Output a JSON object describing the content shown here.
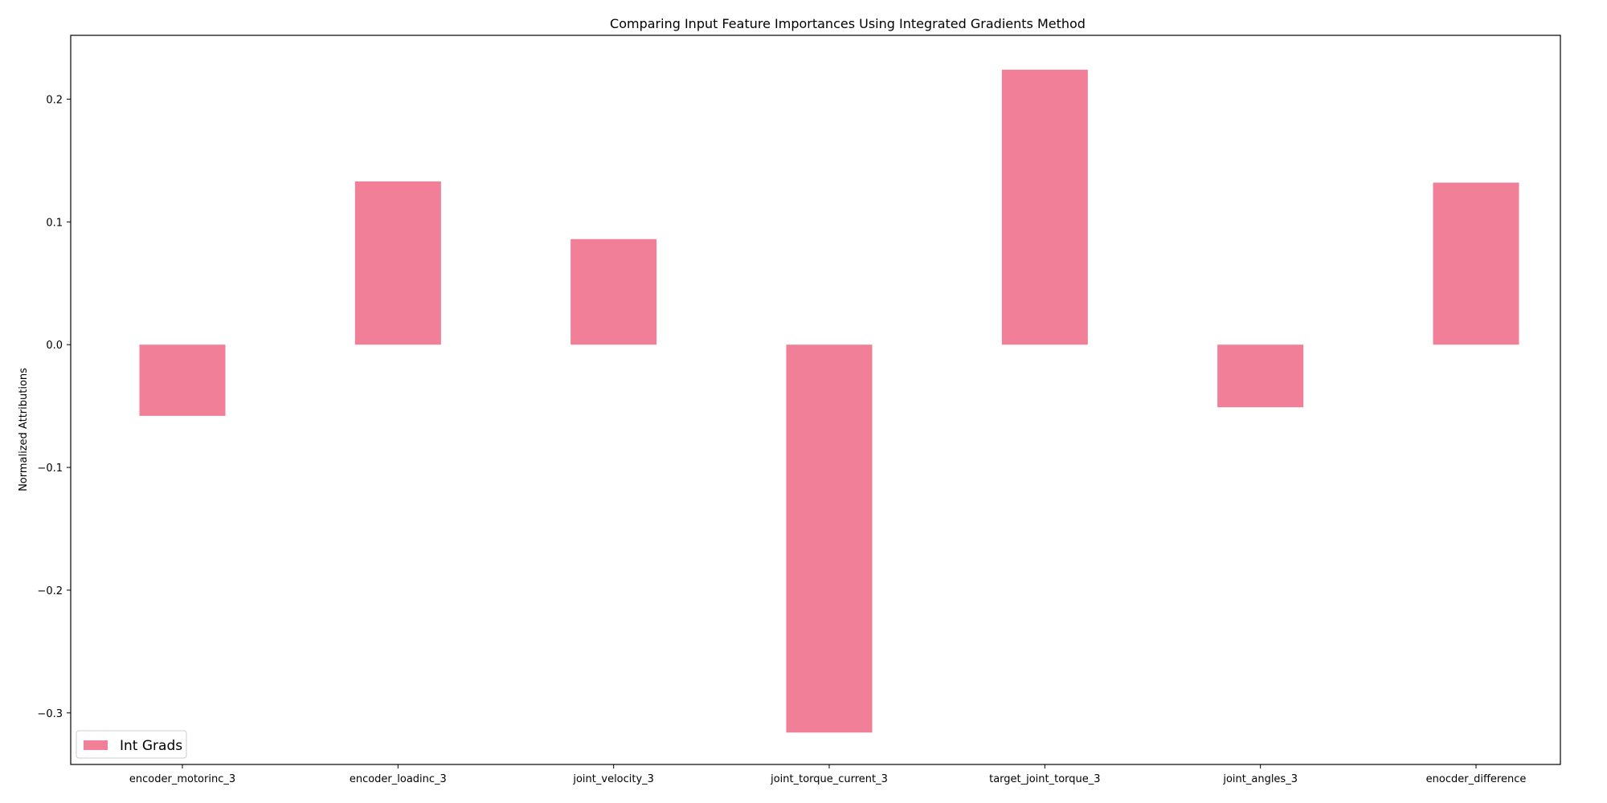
{
  "chart_data": {
    "type": "bar",
    "title": "Comparing Input Feature Importances Using Integrated Gradients Method",
    "xlabel": "",
    "ylabel": "Normalized Attributions",
    "categories": [
      "encoder_motorinc_3",
      "encoder_loadinc_3",
      "joint_velocity_3",
      "joint_torque_current_3",
      "target_joint_torque_3",
      "joint_angles_3",
      "enocder_difference"
    ],
    "series": [
      {
        "name": "Int Grads",
        "color": "#f07f97",
        "values": [
          -0.058,
          0.133,
          0.086,
          -0.316,
          0.224,
          -0.051,
          0.132
        ]
      }
    ],
    "ylim": [
      -0.342,
      0.252
    ],
    "yticks": [
      -0.3,
      -0.2,
      -0.1,
      0.0,
      0.1,
      0.2
    ],
    "ytick_labels": [
      "−0.3",
      "−0.2",
      "−0.1",
      "0.0",
      "0.1",
      "0.2"
    ],
    "grid": false,
    "legend_position": "bottom-left"
  }
}
